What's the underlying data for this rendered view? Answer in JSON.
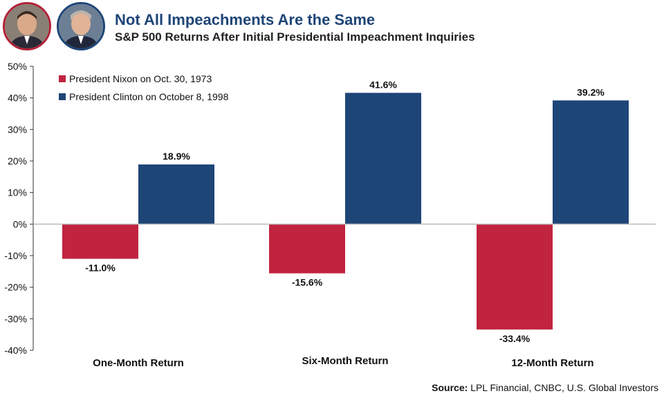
{
  "header": {
    "title": "Not All Impeachments Are the Same",
    "subtitle": "S&P 500 Returns After Initial Presidential Impeachment Inquiries"
  },
  "portraits": [
    {
      "name": "nixon-portrait-icon",
      "ring_color": "#b12237"
    },
    {
      "name": "clinton-portrait-icon",
      "ring_color": "#1e4577"
    }
  ],
  "source": {
    "label": "Source:",
    "text": "LPL Financial, CNBC, U.S. Global Investors"
  },
  "chart_data": {
    "type": "bar",
    "title": "Not All Impeachments Are the Same",
    "subtitle": "S&P 500 Returns After Initial Presidential Impeachment Inquiries",
    "categories": [
      "One-Month Return",
      "Six-Month Return",
      "12-Month Return"
    ],
    "series": [
      {
        "name": "President Nixon on Oct. 30, 1973",
        "color": "#c0243f",
        "values": [
          -11.0,
          -15.6,
          -33.4
        ],
        "labels": [
          "-11.0%",
          "-15.6%",
          "-33.4%"
        ]
      },
      {
        "name": "President Clinton on October 8, 1998",
        "color": "#1e4577",
        "values": [
          18.9,
          41.6,
          39.2
        ],
        "labels": [
          "18.9%",
          "41.6%",
          "39.2%"
        ]
      }
    ],
    "yticks": [
      50,
      40,
      30,
      20,
      10,
      0,
      -10,
      -20,
      -30,
      -40
    ],
    "ytick_labels": [
      "50%",
      "40%",
      "30%",
      "20%",
      "10%",
      "0%",
      "-10%",
      "-20%",
      "-30%",
      "-40%"
    ],
    "ylim": [
      -40,
      50
    ],
    "grid": false,
    "legend": "top-left"
  }
}
